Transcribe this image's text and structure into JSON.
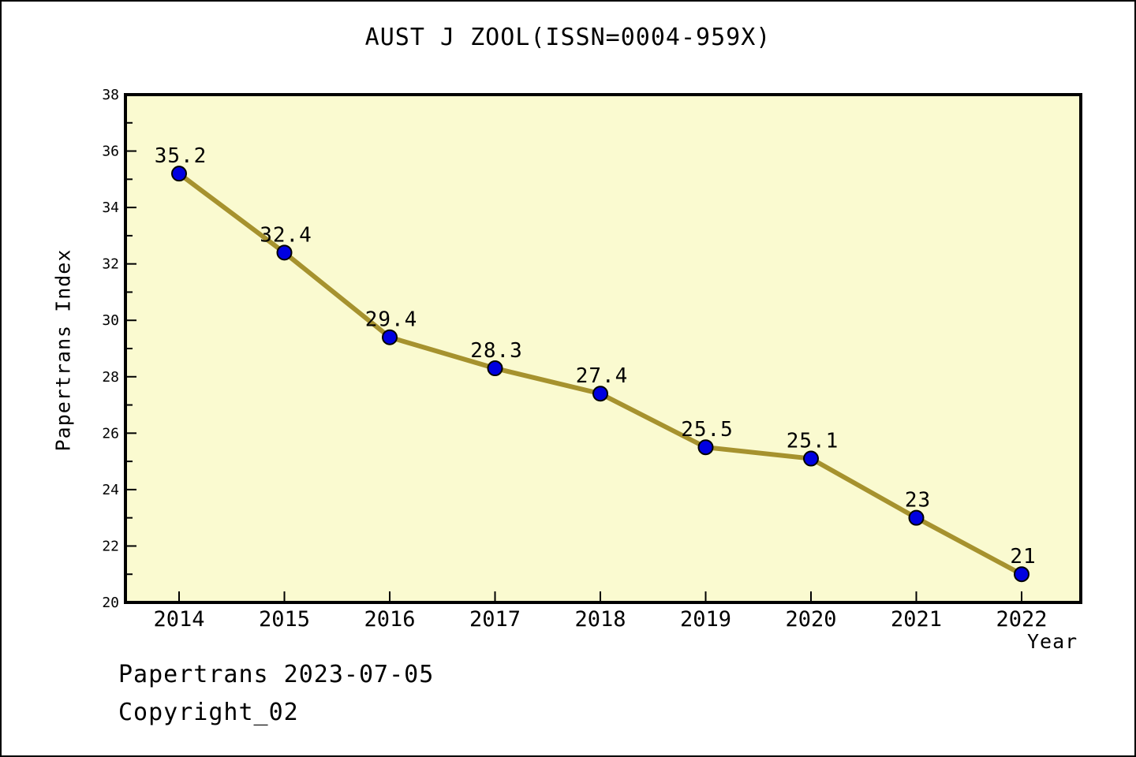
{
  "page": {
    "footer_line1": "Papertrans 2023-07-05",
    "footer_line2": "Copyright_02"
  },
  "chart_data": {
    "type": "line",
    "title": "AUST J ZOOL(ISSN=0004-959X)",
    "xlabel": "Year",
    "ylabel": "Papertrans Index",
    "categories": [
      "2014",
      "2015",
      "2016",
      "2017",
      "2018",
      "2019",
      "2020",
      "2021",
      "2022"
    ],
    "values": [
      35.2,
      32.4,
      29.4,
      28.3,
      27.4,
      25.5,
      25.1,
      23,
      21
    ],
    "point_labels": [
      "35.2",
      "32.4",
      "29.4",
      "28.3",
      "27.4",
      "25.5",
      "25.1",
      "23",
      "21"
    ],
    "ylim": [
      20,
      38
    ],
    "ytick_step": 2,
    "ytick_minor_step": 1,
    "grid": false,
    "legend": "none",
    "colors": {
      "line": "#A6922E",
      "marker_fill": "#0000E0",
      "marker_edge": "#000000",
      "plot_bg": "#FAFAD0",
      "frame": "#000000",
      "text": "#000000",
      "page_bg": "#FFFFFF"
    }
  }
}
